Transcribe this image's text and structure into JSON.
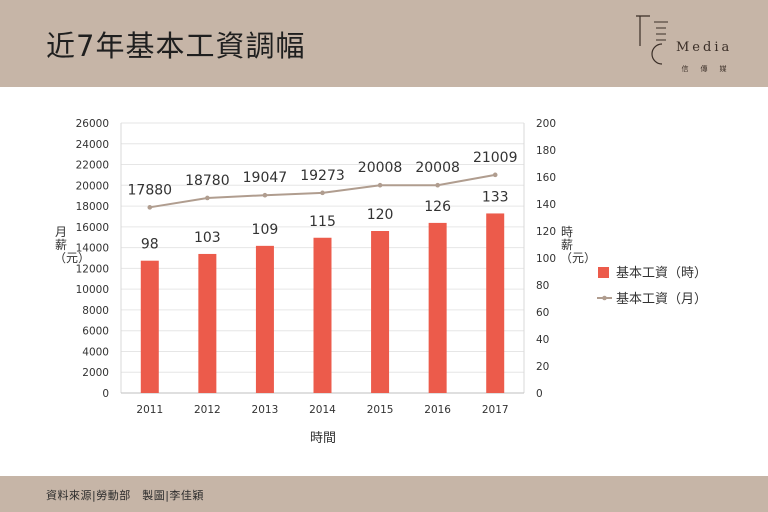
{
  "header": {
    "title": "近7年基本工資調幅",
    "logo_text": "Media",
    "logo_sub": "信傳媒"
  },
  "footer": {
    "credit": "資料來源|勞動部　製圖|李佳穎"
  },
  "colors": {
    "band": "#c6b5a7",
    "bar": "#ec5b4b",
    "line": "#b09d8f"
  },
  "chart_data": {
    "type": "bar",
    "categories": [
      "2011",
      "2012",
      "2013",
      "2014",
      "2015",
      "2016",
      "2017"
    ],
    "xlabel": "時間",
    "ylabel_left": "月薪（元）",
    "ylabel_right": "時薪（元）",
    "left_axis": {
      "min": 0,
      "max": 26000,
      "step": 2000
    },
    "right_axis": {
      "min": 0,
      "max": 200,
      "step": 20
    },
    "series": [
      {
        "name": "基本工資（時）",
        "type": "bar",
        "axis": "right",
        "values": [
          98,
          103,
          109,
          115,
          120,
          126,
          133
        ]
      },
      {
        "name": "基本工資（月）",
        "type": "line",
        "axis": "left",
        "values": [
          17880,
          18780,
          19047,
          19273,
          20008,
          20008,
          21009
        ]
      }
    ],
    "legend_position": "right"
  }
}
